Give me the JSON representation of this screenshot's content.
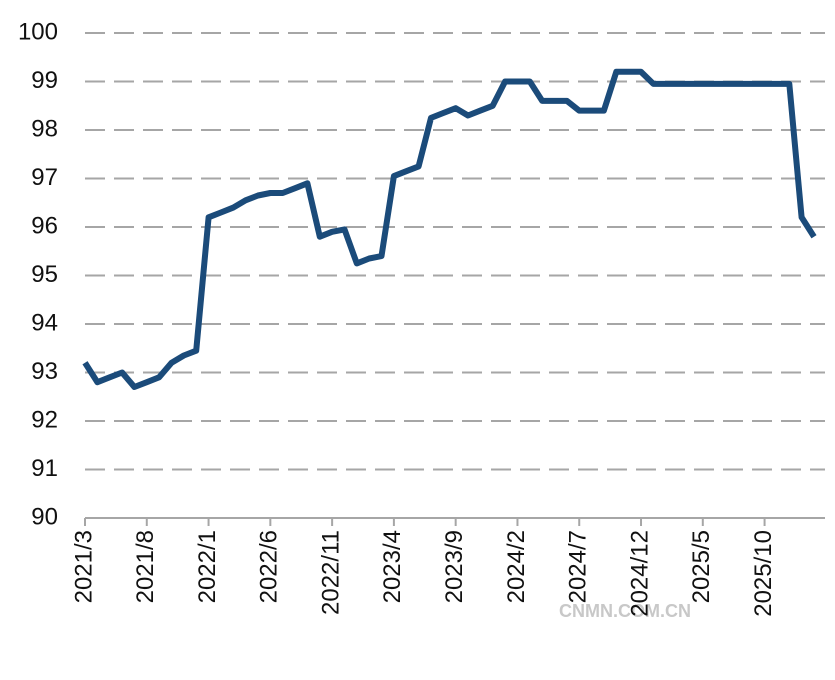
{
  "chart_data": {
    "type": "line",
    "categories": [
      "2021/3",
      null,
      null,
      null,
      null,
      "2021/8",
      null,
      null,
      null,
      null,
      "2022/1",
      null,
      null,
      null,
      null,
      "2022/6",
      null,
      null,
      null,
      null,
      "2022/11",
      null,
      null,
      null,
      null,
      "2023/4",
      null,
      null,
      null,
      null,
      "2023/9",
      null,
      null,
      null,
      null,
      "2024/2",
      null,
      null,
      null,
      null,
      "2024/7",
      null,
      null,
      null,
      null,
      "2024/12",
      null,
      null,
      null,
      null,
      "2025/5",
      null,
      null,
      null,
      null,
      "2025/10",
      null,
      null,
      null,
      null
    ],
    "series": [
      {
        "color": "#1b4b7a",
        "values": [
          93.2,
          92.8,
          92.9,
          93.0,
          92.7,
          92.8,
          92.9,
          93.2,
          93.35,
          93.45,
          96.2,
          96.3,
          96.4,
          96.55,
          96.65,
          96.7,
          96.7,
          96.8,
          96.9,
          95.8,
          95.9,
          95.95,
          95.25,
          95.35,
          95.4,
          97.05,
          97.15,
          97.25,
          98.25,
          98.35,
          98.45,
          98.3,
          98.4,
          98.5,
          99.0,
          99.0,
          99.0,
          98.6,
          98.6,
          98.6,
          98.4,
          98.4,
          98.4,
          99.2,
          99.2,
          99.2,
          98.95,
          98.95,
          98.95,
          98.95,
          98.95,
          98.95,
          98.95,
          98.95,
          98.95,
          98.95,
          98.95,
          98.95,
          96.2,
          95.8
        ]
      }
    ],
    "ylim": [
      90,
      100
    ],
    "yticks": [
      90,
      91,
      92,
      93,
      94,
      95,
      96,
      97,
      98,
      99,
      100
    ],
    "grid": true,
    "watermark": "CNMN.COM.CN"
  }
}
